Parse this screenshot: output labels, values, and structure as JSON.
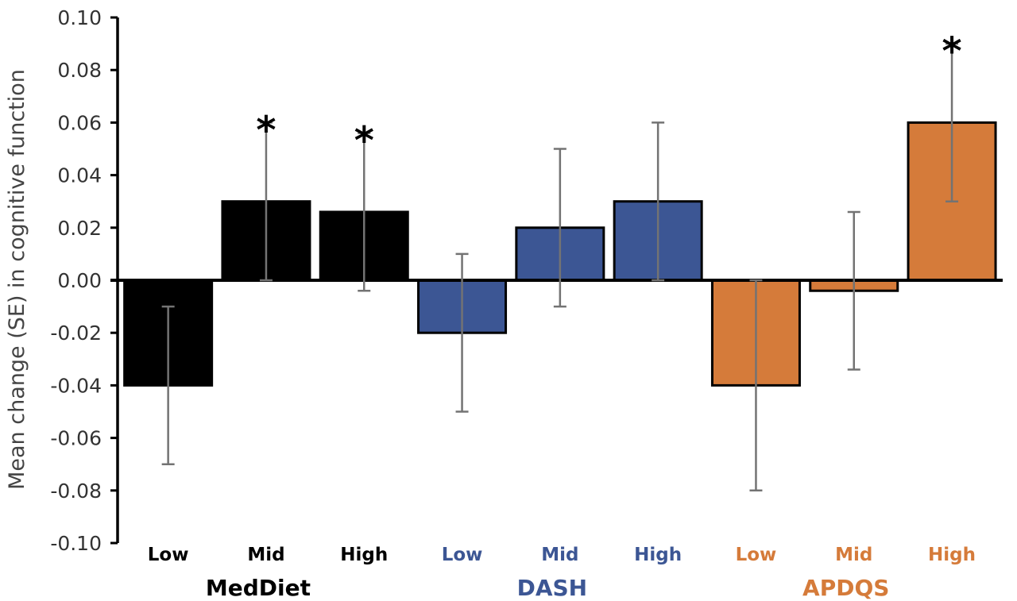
{
  "chart_data": {
    "type": "bar",
    "title": "",
    "xlabel": "",
    "ylabel": "Mean change (SE) in cognitive function",
    "ylim": [
      -0.1,
      0.1
    ],
    "yticks": [
      "0.10",
      "0.08",
      "0.06",
      "0.04",
      "0.02",
      "0.00",
      "-0.02",
      "-0.04",
      "-0.06",
      "-0.08",
      "-0.10"
    ],
    "grid": false,
    "legend": "none",
    "groups": [
      {
        "name": "MedDiet",
        "color": "#000000",
        "label_color": "#000000",
        "categories": [
          "Low",
          "Mid",
          "High"
        ],
        "values": [
          -0.04,
          0.03,
          0.026
        ],
        "error_low": [
          -0.07,
          0.0,
          -0.004
        ],
        "error_high": [
          -0.01,
          0.06,
          0.056
        ],
        "significant": [
          false,
          true,
          true
        ]
      },
      {
        "name": "DASH",
        "color": "#3C5694",
        "label_color": "#3C5694",
        "categories": [
          "Low",
          "Mid",
          "High"
        ],
        "values": [
          -0.02,
          0.02,
          0.03
        ],
        "error_low": [
          -0.05,
          -0.01,
          0.0
        ],
        "error_high": [
          0.01,
          0.05,
          0.06
        ],
        "significant": [
          false,
          false,
          false
        ]
      },
      {
        "name": "APDQS",
        "color": "#D57B3A",
        "label_color": "#D57B3A",
        "categories": [
          "Low",
          "Mid",
          "High"
        ],
        "values": [
          -0.04,
          -0.004,
          0.06
        ],
        "error_low": [
          -0.08,
          -0.034,
          0.03
        ],
        "error_high": [
          0.0,
          0.026,
          0.09
        ],
        "significant": [
          false,
          false,
          true
        ]
      }
    ],
    "significance_marker": "*",
    "error_bar_color": "#737373"
  }
}
